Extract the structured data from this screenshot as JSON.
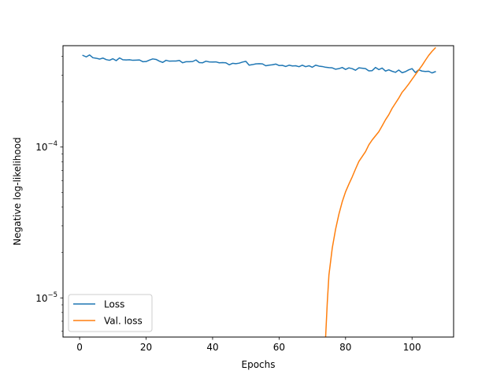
{
  "chart_data": {
    "type": "line",
    "title": "",
    "xlabel": "Epochs",
    "ylabel": "Negative log-likelihood",
    "yscale": "log",
    "xlim": [
      -5,
      112.5
    ],
    "ylim": [
      5.5e-06,
      0.00047
    ],
    "xticks": [
      0,
      20,
      40,
      60,
      80,
      100
    ],
    "xtick_labels": [
      "0",
      "20",
      "40",
      "60",
      "80",
      "100"
    ],
    "yticks": [
      1e-05,
      0.0001
    ],
    "ytick_labels": [
      {
        "base": "10",
        "exp": "−5"
      },
      {
        "base": "10",
        "exp": "−4"
      }
    ],
    "grid": false,
    "legend_position": "lower-left",
    "series": [
      {
        "name": "Loss",
        "color": "#1f77b4",
        "x": [
          1,
          2,
          3,
          4,
          5,
          6,
          7,
          8,
          9,
          10,
          11,
          12,
          13,
          14,
          15,
          16,
          17,
          18,
          19,
          20,
          21,
          22,
          23,
          24,
          25,
          26,
          27,
          28,
          29,
          30,
          31,
          32,
          33,
          34,
          35,
          36,
          37,
          38,
          39,
          40,
          41,
          42,
          43,
          44,
          45,
          46,
          47,
          48,
          49,
          50,
          51,
          52,
          53,
          54,
          55,
          56,
          57,
          58,
          59,
          60,
          61,
          62,
          63,
          64,
          65,
          66,
          67,
          68,
          69,
          70,
          71,
          72,
          73,
          74,
          75,
          76,
          77,
          78,
          79,
          80,
          81,
          82,
          83,
          84,
          85,
          86,
          87,
          88,
          89,
          90,
          91,
          92,
          93,
          94,
          95,
          96,
          97,
          98,
          99,
          100,
          101,
          102,
          103,
          104,
          105,
          106,
          107
        ],
        "y": [
          0.000405,
          0.000396,
          0.000408,
          0.000391,
          0.000388,
          0.000383,
          0.000389,
          0.00038,
          0.000376,
          0.000385,
          0.000374,
          0.00039,
          0.000379,
          0.000378,
          0.000379,
          0.000376,
          0.000377,
          0.000378,
          0.000368,
          0.000369,
          0.000377,
          0.000384,
          0.000381,
          0.000371,
          0.000364,
          0.000376,
          0.000371,
          0.000372,
          0.000372,
          0.000375,
          0.000362,
          0.000368,
          0.000368,
          0.000369,
          0.000378,
          0.000363,
          0.000362,
          0.000371,
          0.000367,
          0.000366,
          0.000367,
          0.000362,
          0.000363,
          0.000362,
          0.000351,
          0.000359,
          0.000357,
          0.00036,
          0.000366,
          0.00037,
          0.000349,
          0.000352,
          0.000356,
          0.000357,
          0.000356,
          0.000346,
          0.000349,
          0.000351,
          0.000355,
          0.000347,
          0.000348,
          0.000342,
          0.000349,
          0.000345,
          0.000346,
          0.000341,
          0.000349,
          0.000341,
          0.000346,
          0.000338,
          0.000349,
          0.000344,
          0.000342,
          0.000338,
          0.000336,
          0.000335,
          0.000328,
          0.000331,
          0.000337,
          0.000327,
          0.000335,
          0.000331,
          0.000323,
          0.000335,
          0.000333,
          0.000331,
          0.00032,
          0.000321,
          0.000337,
          0.000326,
          0.000334,
          0.000319,
          0.000325,
          0.000318,
          0.000313,
          0.000324,
          0.000311,
          0.000316,
          0.000325,
          0.000331,
          0.000312,
          0.000325,
          0.000319,
          0.000317,
          0.000318,
          0.00031,
          0.000316
        ]
      },
      {
        "name": "Val. loss",
        "color": "#ff7f0e",
        "x": [
          74,
          74.5,
          75,
          76,
          77,
          78,
          79,
          80,
          81,
          82,
          83,
          84,
          85,
          86,
          87,
          88,
          89,
          90,
          91,
          92,
          93,
          94,
          95,
          96,
          97,
          98,
          99,
          100,
          101,
          102,
          103,
          104,
          105,
          106,
          107
        ],
        "y": [
          5.5e-06,
          9.3e-06,
          1.42e-05,
          2.14e-05,
          2.85e-05,
          3.59e-05,
          4.34e-05,
          5.05e-05,
          5.68e-05,
          6.34e-05,
          7.15e-05,
          8.02e-05,
          8.65e-05,
          9.32e-05,
          0.0001034,
          0.0001114,
          0.0001187,
          0.0001264,
          0.0001381,
          0.0001515,
          0.0001638,
          0.0001804,
          0.0001951,
          0.0002111,
          0.0002304,
          0.0002449,
          0.0002617,
          0.0002812,
          0.0003018,
          0.0003238,
          0.0003473,
          0.0003758,
          0.000405,
          0.0004309,
          0.0004541
        ]
      }
    ]
  }
}
